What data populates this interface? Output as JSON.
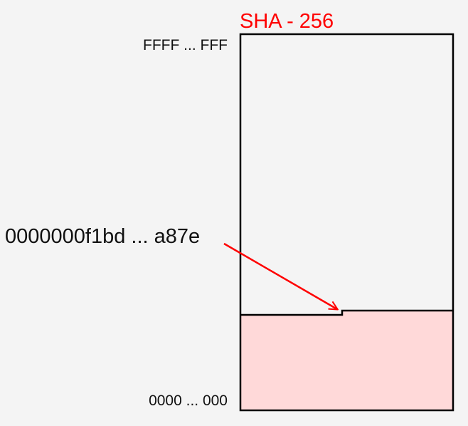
{
  "diagram": {
    "title": "SHA - 256",
    "max_label": "FFFF ... FFF",
    "min_label": "0000 ... 000",
    "hash_label": "0000000f1bd ... a87e",
    "colors": {
      "accent": "#ff0000",
      "fill": "#ffd9d9",
      "stroke": "#000000",
      "background": "#f4f4f4"
    }
  }
}
